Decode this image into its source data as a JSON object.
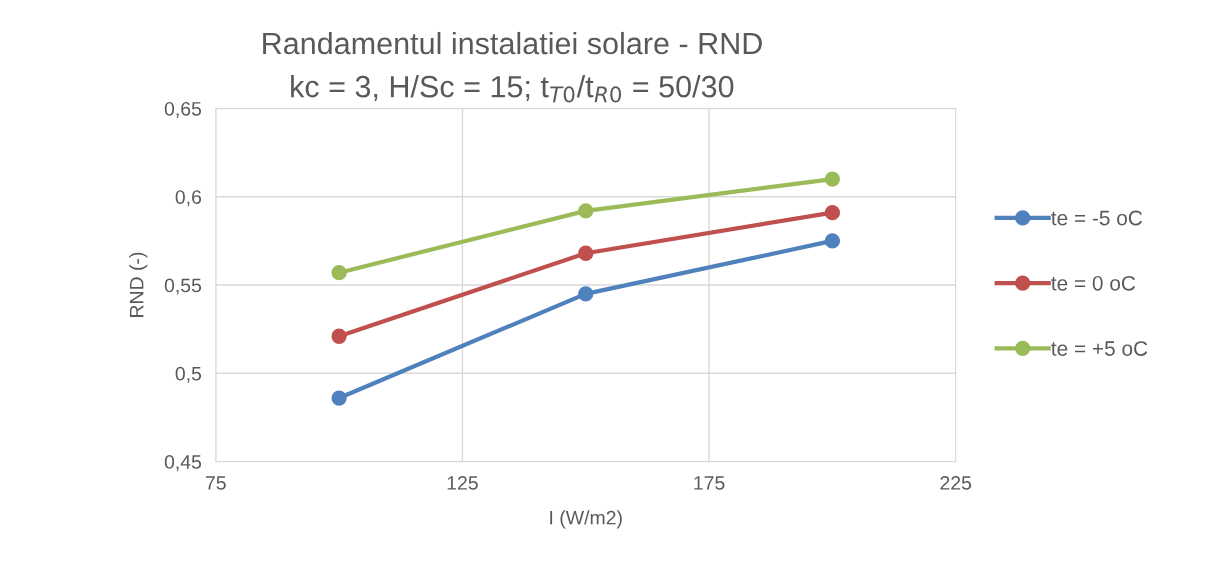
{
  "chart_data": {
    "type": "line",
    "title": "Randamentul instalatiei solare - RND",
    "subtitle": "kc = 3, H/Sc = 15; t$_{T0}$/t$_{R0}$ = 50/30",
    "xlabel": "I (W/m2)",
    "ylabel": "RND (-)",
    "x": [
      100,
      150,
      200
    ],
    "series": [
      {
        "name": "te = -5 oC",
        "color": "#4f81bd",
        "values": [
          0.486,
          0.545,
          0.575
        ]
      },
      {
        "name": "te = 0 oC",
        "color": "#c0504d",
        "values": [
          0.521,
          0.568,
          0.591
        ]
      },
      {
        "name": "te = +5 oC",
        "color": "#9bbb59",
        "values": [
          0.557,
          0.592,
          0.61
        ]
      }
    ],
    "xlim": [
      75,
      225
    ],
    "xticks": [
      75,
      125,
      175,
      225
    ],
    "ylim": [
      0.45,
      0.65
    ],
    "yticks": [
      {
        "value": 0.45,
        "label": "0,45"
      },
      {
        "value": 0.5,
        "label": "0,5"
      },
      {
        "value": 0.55,
        "label": "0,55"
      },
      {
        "value": 0.6,
        "label": "0,6"
      },
      {
        "value": 0.65,
        "label": "0,65"
      }
    ],
    "grid": true,
    "legend": "right",
    "marker": "circle",
    "line_style": "solid"
  }
}
